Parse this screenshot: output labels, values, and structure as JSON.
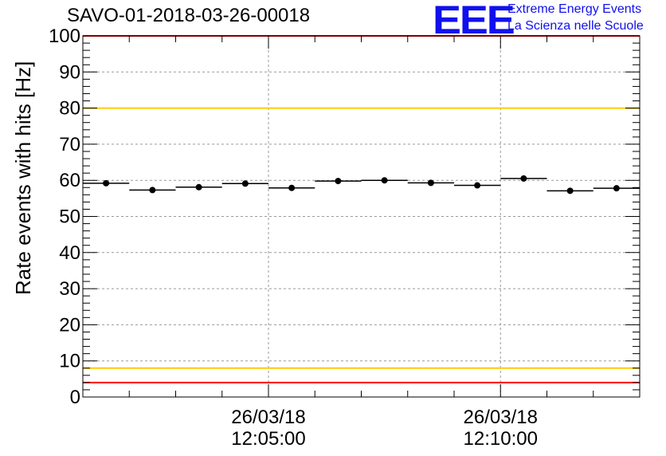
{
  "chart_data": {
    "type": "scatter",
    "title": "SAVO-01-2018-03-26-00018",
    "ylabel": "Rate events with hits [Hz]",
    "xlabel": "",
    "ylim": [
      0,
      100
    ],
    "yticks": [
      0,
      10,
      20,
      30,
      40,
      50,
      60,
      70,
      80,
      90,
      100
    ],
    "x_ticks": [
      {
        "line1": "26/03/18",
        "line2": "12:05:00",
        "index": 4
      },
      {
        "line1": "26/03/18",
        "line2": "12:10:00",
        "index": 9
      }
    ],
    "bins": 12,
    "series": [
      {
        "name": "rate",
        "values": [
          59.2,
          57.3,
          58.1,
          59.1,
          57.9,
          59.8,
          60.0,
          59.3,
          58.6,
          60.5,
          57.1,
          57.8
        ]
      }
    ],
    "reference_lines": [
      {
        "name": "upper-red",
        "value": 100,
        "color": "#ff0000"
      },
      {
        "name": "upper-yellow",
        "value": 80,
        "color": "#ffcc00"
      },
      {
        "name": "lower-yellow",
        "value": 8,
        "color": "#ffcc00"
      },
      {
        "name": "lower-red",
        "value": 4,
        "color": "#ff0000"
      }
    ],
    "grid": true
  },
  "logo": {
    "mark": "EEE",
    "line1": "Extreme Energy Events",
    "line2": "La Scienza nelle Scuole"
  }
}
